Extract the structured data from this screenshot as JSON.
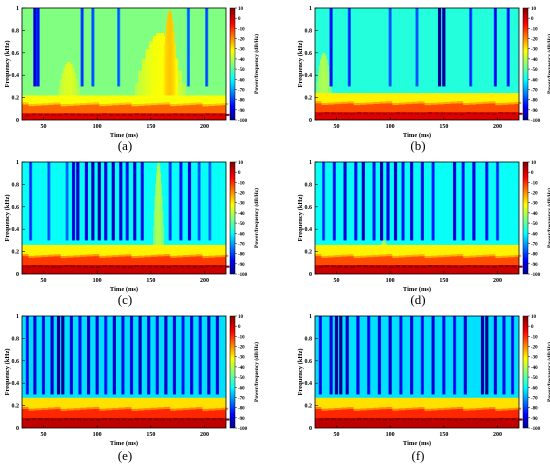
{
  "figure": {
    "panel_labels": [
      "(a)",
      "(b)",
      "(c)",
      "(d)",
      "(e)",
      "(f)"
    ]
  },
  "chart_data": [
    {
      "panel": "(a)",
      "type": "heatmap",
      "xlabel": "Time (ms)",
      "ylabel": "Frequency (kHz)",
      "colorbar_label": "Power/frequency (dB/Hz)",
      "xlim": [
        30,
        220
      ],
      "ylim": [
        0,
        1
      ],
      "clim": [
        -100,
        10
      ],
      "x_ticks": [
        50,
        100,
        150,
        200
      ],
      "y_ticks": [
        0,
        0.2,
        0.4,
        0.6,
        0.8,
        1
      ],
      "colorbar_ticks": [
        10,
        0,
        -10,
        -20,
        -30,
        -40,
        -50,
        -60,
        -70,
        -80,
        -90,
        -100
      ],
      "background_db": -45,
      "bands": [
        {
          "f_max": 0.06,
          "db": 0
        },
        {
          "f_max": 0.14,
          "db": -15
        },
        {
          "f_max": 0.22,
          "db": -32
        }
      ],
      "streaks": [
        {
          "t": 42,
          "db": -85
        },
        {
          "t": 45,
          "db": -80
        },
        {
          "t": 86,
          "db": -75
        },
        {
          "t": 96,
          "db": -72
        },
        {
          "t": 120,
          "db": -70
        },
        {
          "t": 185,
          "db": -70
        },
        {
          "t": 202,
          "db": -72
        }
      ],
      "humps": [
        {
          "t_start": 62,
          "t_end": 85,
          "f_peak": 0.52,
          "db": -35
        },
        {
          "t_start": 135,
          "t_end": 182,
          "f_peak": 0.78,
          "db": -32
        },
        {
          "t_start": 160,
          "t_end": 175,
          "f_peak": 0.98,
          "db": -25
        }
      ]
    },
    {
      "panel": "(b)",
      "type": "heatmap",
      "xlabel": "Time (ms)",
      "ylabel": "Frequency (kHz)",
      "colorbar_label": "Power/frequency (dB/Hz)",
      "xlim": [
        30,
        220
      ],
      "ylim": [
        0,
        1
      ],
      "clim": [
        -100,
        10
      ],
      "x_ticks": [
        50,
        100,
        150,
        200
      ],
      "y_ticks": [
        0,
        0.2,
        0.4,
        0.6,
        0.8,
        1
      ],
      "colorbar_ticks": [
        10,
        0,
        -10,
        -20,
        -30,
        -40,
        -50,
        -60,
        -70,
        -80,
        -90,
        -100
      ],
      "background_db": -55,
      "bands": [
        {
          "f_max": 0.07,
          "db": 0
        },
        {
          "f_max": 0.15,
          "db": -12
        },
        {
          "f_max": 0.24,
          "db": -30
        }
      ],
      "streaks": [
        {
          "t": 45,
          "db": -80
        },
        {
          "t": 62,
          "db": -75
        },
        {
          "t": 100,
          "db": -72
        },
        {
          "t": 125,
          "db": -72
        },
        {
          "t": 146,
          "db": -95
        },
        {
          "t": 150,
          "db": -95
        },
        {
          "t": 175,
          "db": -75
        },
        {
          "t": 198,
          "db": -80
        },
        {
          "t": 210,
          "db": -78
        }
      ],
      "humps": [
        {
          "t_start": 30,
          "t_end": 46,
          "f_peak": 0.6,
          "db": -40
        }
      ]
    },
    {
      "panel": "(c)",
      "type": "heatmap",
      "xlabel": "Time (ms)",
      "ylabel": "Frequency (kHz)",
      "colorbar_label": "Power/frequency (dB/Hz)",
      "xlim": [
        30,
        220
      ],
      "ylim": [
        0,
        1
      ],
      "clim": [
        -100,
        10
      ],
      "x_ticks": [
        50,
        100,
        150,
        200
      ],
      "y_ticks": [
        0,
        0.2,
        0.4,
        0.6,
        0.8,
        1
      ],
      "colorbar_ticks": [
        10,
        0,
        -10,
        -20,
        -30,
        -40,
        -50,
        -60,
        -70,
        -80,
        -90,
        -100
      ],
      "background_db": -58,
      "bands": [
        {
          "f_max": 0.08,
          "db": 2
        },
        {
          "f_max": 0.16,
          "db": -10
        },
        {
          "f_max": 0.26,
          "db": -30
        }
      ],
      "streaks": [
        {
          "t": 38,
          "db": -75
        },
        {
          "t": 55,
          "db": -72
        },
        {
          "t": 72,
          "db": -70
        },
        {
          "t": 78,
          "db": -85
        },
        {
          "t": 82,
          "db": -88
        },
        {
          "t": 90,
          "db": -85
        },
        {
          "t": 96,
          "db": -88
        },
        {
          "t": 102,
          "db": -90
        },
        {
          "t": 108,
          "db": -85
        },
        {
          "t": 115,
          "db": -88
        },
        {
          "t": 122,
          "db": -85
        },
        {
          "t": 128,
          "db": -80
        },
        {
          "t": 135,
          "db": -85
        },
        {
          "t": 142,
          "db": -82
        },
        {
          "t": 168,
          "db": -75
        },
        {
          "t": 178,
          "db": -80
        },
        {
          "t": 186,
          "db": -85
        },
        {
          "t": 195,
          "db": -72
        },
        {
          "t": 205,
          "db": -70
        }
      ],
      "humps": [
        {
          "t_start": 152,
          "t_end": 162,
          "f_peak": 1.0,
          "db": -40
        }
      ]
    },
    {
      "panel": "(d)",
      "type": "heatmap",
      "xlabel": "Time (ms)",
      "ylabel": "Frequency (kHz)",
      "colorbar_label": "Power/frequency (dB/Hz)",
      "xlim": [
        30,
        220
      ],
      "ylim": [
        0,
        1
      ],
      "clim": [
        -100,
        10
      ],
      "x_ticks": [
        50,
        100,
        150,
        200
      ],
      "y_ticks": [
        0,
        0.2,
        0.4,
        0.6,
        0.8,
        1
      ],
      "colorbar_ticks": [
        10,
        0,
        -10,
        -20,
        -30,
        -40,
        -50,
        -60,
        -70,
        -80,
        -90,
        -100
      ],
      "background_db": -58,
      "bands": [
        {
          "f_max": 0.08,
          "db": 2
        },
        {
          "f_max": 0.16,
          "db": -12
        },
        {
          "f_max": 0.26,
          "db": -30
        }
      ],
      "streaks": [
        {
          "t": 38,
          "db": -75
        },
        {
          "t": 48,
          "db": -80
        },
        {
          "t": 58,
          "db": -85
        },
        {
          "t": 68,
          "db": -82
        },
        {
          "t": 75,
          "db": -88
        },
        {
          "t": 85,
          "db": -80
        },
        {
          "t": 92,
          "db": -90
        },
        {
          "t": 98,
          "db": -85
        },
        {
          "t": 105,
          "db": -88
        },
        {
          "t": 112,
          "db": -80
        },
        {
          "t": 120,
          "db": -85
        },
        {
          "t": 130,
          "db": -82
        },
        {
          "t": 140,
          "db": -78
        },
        {
          "t": 160,
          "db": -85
        },
        {
          "t": 168,
          "db": -80
        },
        {
          "t": 178,
          "db": -85
        },
        {
          "t": 190,
          "db": -80
        },
        {
          "t": 200,
          "db": -75
        }
      ],
      "humps": [
        {
          "t_start": 88,
          "t_end": 100,
          "f_peak": 0.3,
          "db": -40
        }
      ]
    },
    {
      "panel": "(e)",
      "type": "heatmap",
      "xlabel": "Time (ms)",
      "ylabel": "Frequency (kHz)",
      "colorbar_label": "Power/frequency (dB/Hz)",
      "xlim": [
        30,
        220
      ],
      "ylim": [
        0,
        1
      ],
      "clim": [
        -100,
        10
      ],
      "x_ticks": [
        50,
        100,
        150,
        200
      ],
      "y_ticks": [
        0,
        0.2,
        0.4,
        0.6,
        0.8,
        1
      ],
      "colorbar_ticks": [
        10,
        0,
        -10,
        -20,
        -30,
        -40,
        -50,
        -60,
        -70,
        -80,
        -90,
        -100
      ],
      "background_db": -62,
      "bands": [
        {
          "f_max": 0.09,
          "db": 3
        },
        {
          "f_max": 0.17,
          "db": -8
        },
        {
          "f_max": 0.27,
          "db": -28
        }
      ],
      "streaks": [
        {
          "t": 35,
          "db": -80
        },
        {
          "t": 42,
          "db": -85
        },
        {
          "t": 50,
          "db": -82
        },
        {
          "t": 58,
          "db": -88
        },
        {
          "t": 64,
          "db": -95
        },
        {
          "t": 68,
          "db": -95
        },
        {
          "t": 76,
          "db": -85
        },
        {
          "t": 84,
          "db": -82
        },
        {
          "t": 92,
          "db": -88
        },
        {
          "t": 100,
          "db": -85
        },
        {
          "t": 108,
          "db": -80
        },
        {
          "t": 116,
          "db": -88
        },
        {
          "t": 124,
          "db": -82
        },
        {
          "t": 132,
          "db": -85
        },
        {
          "t": 140,
          "db": -90
        },
        {
          "t": 148,
          "db": -85
        },
        {
          "t": 156,
          "db": -82
        },
        {
          "t": 164,
          "db": -88
        },
        {
          "t": 172,
          "db": -85
        },
        {
          "t": 180,
          "db": -80
        },
        {
          "t": 188,
          "db": -85
        },
        {
          "t": 196,
          "db": -82
        },
        {
          "t": 204,
          "db": -88
        },
        {
          "t": 212,
          "db": -85
        }
      ],
      "humps": []
    },
    {
      "panel": "(f)",
      "type": "heatmap",
      "xlabel": "Time (ms)",
      "ylabel": "Frequency (kHz)",
      "colorbar_label": "Power/frequency (dB/Hz)",
      "xlim": [
        30,
        220
      ],
      "ylim": [
        0,
        1
      ],
      "clim": [
        -100,
        10
      ],
      "x_ticks": [
        50,
        100,
        150,
        200
      ],
      "y_ticks": [
        0,
        0.2,
        0.4,
        0.6,
        0.8,
        1
      ],
      "colorbar_ticks": [
        10,
        0,
        -10,
        -20,
        -30,
        -40,
        -50,
        -60,
        -70,
        -80,
        -90,
        -100
      ],
      "background_db": -62,
      "bands": [
        {
          "f_max": 0.09,
          "db": 3
        },
        {
          "f_max": 0.17,
          "db": -8
        },
        {
          "f_max": 0.27,
          "db": -28
        }
      ],
      "streaks": [
        {
          "t": 35,
          "db": -82
        },
        {
          "t": 45,
          "db": -85
        },
        {
          "t": 50,
          "db": -95
        },
        {
          "t": 54,
          "db": -95
        },
        {
          "t": 60,
          "db": -88
        },
        {
          "t": 70,
          "db": -85
        },
        {
          "t": 80,
          "db": -82
        },
        {
          "t": 90,
          "db": -85
        },
        {
          "t": 100,
          "db": -88
        },
        {
          "t": 110,
          "db": -82
        },
        {
          "t": 120,
          "db": -85
        },
        {
          "t": 130,
          "db": -80
        },
        {
          "t": 140,
          "db": -85
        },
        {
          "t": 150,
          "db": -82
        },
        {
          "t": 160,
          "db": -80
        },
        {
          "t": 170,
          "db": -85
        },
        {
          "t": 186,
          "db": -92
        },
        {
          "t": 190,
          "db": -95
        },
        {
          "t": 198,
          "db": -85
        },
        {
          "t": 206,
          "db": -82
        },
        {
          "t": 214,
          "db": -80
        }
      ],
      "humps": []
    }
  ]
}
